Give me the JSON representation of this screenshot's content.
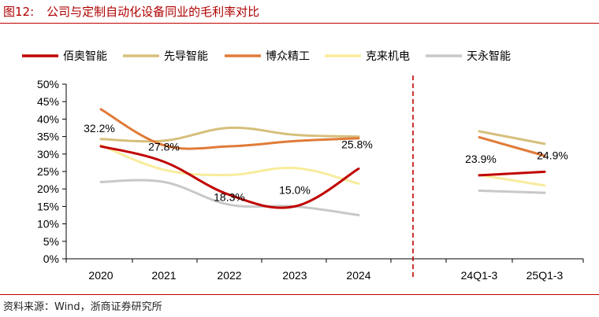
{
  "figure": {
    "number": "图12:",
    "title": "公司与定制自动化设备同业的毛利率对比",
    "source": "资料来源：Wind，浙商证券研究所"
  },
  "chart_data": {
    "type": "line",
    "categories": [
      "2020",
      "2021",
      "2022",
      "2023",
      "2024",
      "24Q1-3",
      "25Q1-3"
    ],
    "ylim": [
      0,
      50
    ],
    "yticks": [
      "0%",
      "5%",
      "10%",
      "15%",
      "20%",
      "25%",
      "30%",
      "35%",
      "40%",
      "45%",
      "50%"
    ],
    "legend_position": "top",
    "divider_between": [
      "2024",
      "24Q1-3"
    ],
    "series": [
      {
        "name": "佰奥智能",
        "color": "#c00000",
        "values": [
          32.2,
          27.8,
          18.3,
          15.0,
          25.8,
          23.9,
          24.9
        ],
        "labels": [
          "32.2%",
          "27.8%",
          "18.3%",
          "15.0%",
          "25.8%",
          "23.9%",
          "24.9%"
        ]
      },
      {
        "name": "先导智能",
        "color": "#d6bf7c",
        "values": [
          34.3,
          33.8,
          37.5,
          35.5,
          35.0,
          36.5,
          32.9
        ]
      },
      {
        "name": "博众精工",
        "color": "#e07b39",
        "values": [
          42.8,
          32.5,
          32.2,
          33.7,
          34.5,
          34.8,
          29.5
        ]
      },
      {
        "name": "克来机电",
        "color": "#f8ec9c",
        "values": [
          32.5,
          25.5,
          24.0,
          26.0,
          21.5,
          24.0,
          21.0
        ]
      },
      {
        "name": "天永智能",
        "color": "#c8c8c8",
        "values": [
          22.0,
          22.0,
          15.5,
          15.0,
          12.5,
          19.5,
          18.9
        ]
      }
    ]
  }
}
